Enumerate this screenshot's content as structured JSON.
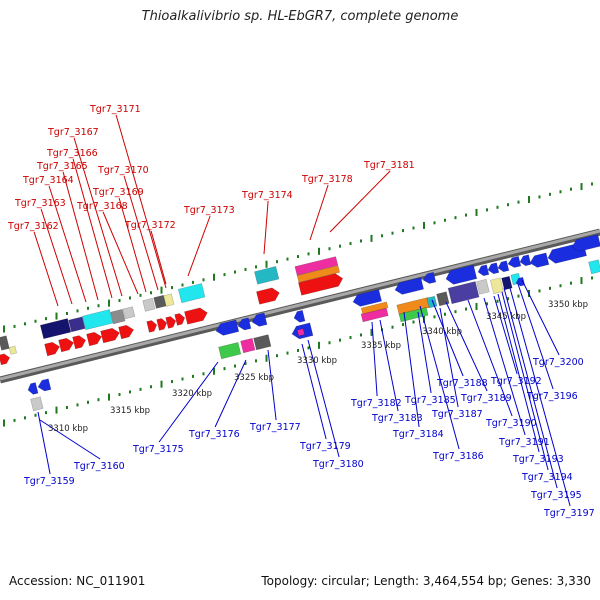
{
  "title": "Thioalkalivibrio sp. HL-EbGR7, complete genome",
  "footer": {
    "accession": "Accession: NC_011901",
    "summary": "Topology: circular; Length: 3,464,554 bp; Genes: 3,330"
  },
  "colors": {
    "forward_label": "#cc0000",
    "reverse_label": "#0000cc",
    "tick": "#1f7a1f",
    "backbone": "#808080"
  },
  "scale_labels": [
    "3310 kbp",
    "3315 kbp",
    "3320 kbp",
    "3325 kbp",
    "3330 kbp",
    "3335 kbp",
    "3340 kbp",
    "3345 kbp",
    "3350 kbp"
  ],
  "forward_genes": [
    "Tgr7_3162",
    "Tgr7_3163",
    "Tgr7_3164",
    "Tgr7_3165",
    "Tgr7_3166",
    "Tgr7_3167",
    "Tgr7_3168",
    "Tgr7_3169",
    "Tgr7_3170",
    "Tgr7_3171",
    "Tgr7_3172",
    "Tgr7_3173",
    "Tgr7_3174",
    "Tgr7_3178",
    "Tgr7_3181"
  ],
  "reverse_genes": [
    "Tgr7_3159",
    "Tgr7_3160",
    "Tgr7_3175",
    "Tgr7_3176",
    "Tgr7_3177",
    "Tgr7_3179",
    "Tgr7_3180",
    "Tgr7_3182",
    "Tgr7_3183",
    "Tgr7_3184",
    "Tgr7_3185",
    "Tgr7_3186",
    "Tgr7_3187",
    "Tgr7_3188",
    "Tgr7_3189",
    "Tgr7_3190",
    "Tgr7_3191",
    "Tgr7_3192",
    "Tgr7_3193",
    "Tgr7_3194",
    "Tgr7_3195",
    "Tgr7_3196",
    "Tgr7_3197",
    "Tgr7_3200"
  ]
}
